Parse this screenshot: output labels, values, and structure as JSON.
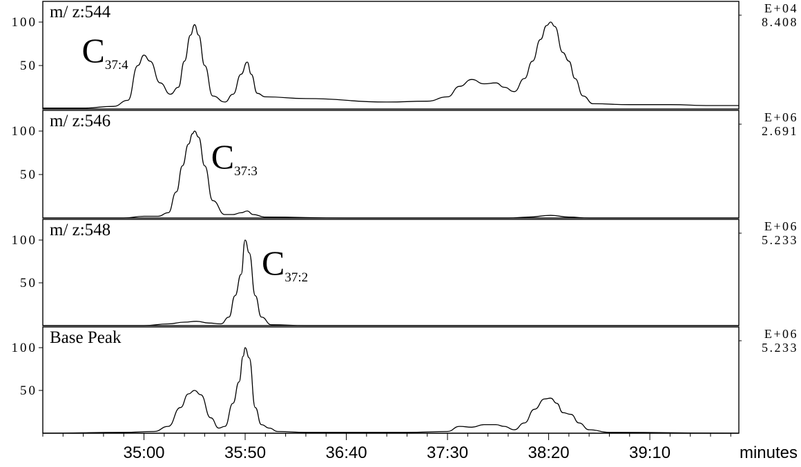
{
  "chart_data": {
    "type": "line",
    "x_unit": "minutes",
    "xlim": [
      "34:10",
      "39:54"
    ],
    "x_tick_labels": [
      "35:00",
      "35:50",
      "36:40",
      "37:30",
      "38:20",
      "39:10"
    ],
    "xlabel": "minutes",
    "y_tick_labels": [
      "100",
      "50"
    ],
    "ylim": [
      0,
      100
    ],
    "panels": [
      {
        "title": "m/ z:544",
        "scale_exponent": "E+04",
        "scale_value": "8.408",
        "annotation": {
          "main": "C",
          "sub": "37:4",
          "points_to_peak": "35:00"
        },
        "points": [
          [
            "34:10",
            1
          ],
          [
            "34:30",
            1
          ],
          [
            "34:45",
            3
          ],
          [
            "34:52",
            10
          ],
          [
            "34:57",
            50
          ],
          [
            "35:00",
            62
          ],
          [
            "35:03",
            55
          ],
          [
            "35:08",
            30
          ],
          [
            "35:13",
            17
          ],
          [
            "35:17",
            25
          ],
          [
            "35:20",
            55
          ],
          [
            "35:23",
            85
          ],
          [
            "35:25",
            97
          ],
          [
            "35:27",
            85
          ],
          [
            "35:30",
            50
          ],
          [
            "35:34",
            15
          ],
          [
            "35:40",
            8
          ],
          [
            "35:44",
            17
          ],
          [
            "35:48",
            40
          ],
          [
            "35:51",
            54
          ],
          [
            "35:53",
            40
          ],
          [
            "35:56",
            18
          ],
          [
            "36:00",
            14
          ],
          [
            "36:20",
            12
          ],
          [
            "37:00",
            8
          ],
          [
            "37:20",
            9
          ],
          [
            "37:30",
            14
          ],
          [
            "37:36",
            26
          ],
          [
            "37:42",
            34
          ],
          [
            "37:48",
            29
          ],
          [
            "37:54",
            30
          ],
          [
            "37:58",
            25
          ],
          [
            "38:03",
            20
          ],
          [
            "38:08",
            35
          ],
          [
            "38:12",
            55
          ],
          [
            "38:16",
            80
          ],
          [
            "38:19",
            96
          ],
          [
            "38:21",
            100
          ],
          [
            "38:23",
            95
          ],
          [
            "38:27",
            65
          ],
          [
            "38:30",
            55
          ],
          [
            "38:33",
            35
          ],
          [
            "38:37",
            15
          ],
          [
            "38:42",
            6
          ],
          [
            "39:00",
            5
          ],
          [
            "39:20",
            5
          ],
          [
            "39:40",
            4
          ],
          [
            "39:54",
            4
          ]
        ]
      },
      {
        "title": "m/ z:546",
        "scale_exponent": "E+06",
        "scale_value": "2.691",
        "annotation": {
          "main": "C",
          "sub": "37:3",
          "points_to_peak": "35:25"
        },
        "points": [
          [
            "34:10",
            0
          ],
          [
            "34:50",
            0
          ],
          [
            "35:00",
            2
          ],
          [
            "35:07",
            2
          ],
          [
            "35:12",
            6
          ],
          [
            "35:16",
            30
          ],
          [
            "35:19",
            60
          ],
          [
            "35:22",
            85
          ],
          [
            "35:24",
            97
          ],
          [
            "35:25",
            100
          ],
          [
            "35:27",
            93
          ],
          [
            "35:30",
            60
          ],
          [
            "35:34",
            20
          ],
          [
            "35:40",
            4
          ],
          [
            "35:44",
            4
          ],
          [
            "35:48",
            6
          ],
          [
            "35:51",
            8
          ],
          [
            "35:54",
            4
          ],
          [
            "36:00",
            1
          ],
          [
            "36:40",
            0
          ],
          [
            "37:00",
            0
          ],
          [
            "38:00",
            0
          ],
          [
            "38:10",
            1
          ],
          [
            "38:21",
            3
          ],
          [
            "38:30",
            1
          ],
          [
            "38:40",
            0
          ],
          [
            "39:54",
            0
          ]
        ]
      },
      {
        "title": "m/ z:548",
        "scale_exponent": "E+06",
        "scale_value": "5.233",
        "annotation": {
          "main": "C",
          "sub": "37:2",
          "points_to_peak": "35:50"
        },
        "points": [
          [
            "34:10",
            0
          ],
          [
            "35:00",
            0
          ],
          [
            "35:12",
            2
          ],
          [
            "35:20",
            4
          ],
          [
            "35:26",
            5
          ],
          [
            "35:32",
            3
          ],
          [
            "35:38",
            2
          ],
          [
            "35:42",
            10
          ],
          [
            "35:45",
            35
          ],
          [
            "35:48",
            60
          ],
          [
            "35:50",
            100
          ],
          [
            "35:52",
            85
          ],
          [
            "35:55",
            35
          ],
          [
            "35:58",
            10
          ],
          [
            "36:03",
            1
          ],
          [
            "36:20",
            0
          ],
          [
            "39:54",
            0
          ]
        ]
      },
      {
        "title": "Base Peak",
        "scale_exponent": "E+06",
        "scale_value": "5.233",
        "annotation": null,
        "points": [
          [
            "34:10",
            0
          ],
          [
            "34:50",
            1
          ],
          [
            "35:05",
            2
          ],
          [
            "35:12",
            8
          ],
          [
            "35:18",
            30
          ],
          [
            "35:22",
            46
          ],
          [
            "35:25",
            50
          ],
          [
            "35:28",
            45
          ],
          [
            "35:33",
            18
          ],
          [
            "35:37",
            6
          ],
          [
            "35:40",
            8
          ],
          [
            "35:44",
            35
          ],
          [
            "35:47",
            60
          ],
          [
            "35:49",
            90
          ],
          [
            "35:50",
            100
          ],
          [
            "35:52",
            88
          ],
          [
            "35:55",
            30
          ],
          [
            "35:58",
            10
          ],
          [
            "36:02",
            6
          ],
          [
            "36:06",
            2
          ],
          [
            "36:20",
            1
          ],
          [
            "37:10",
            1
          ],
          [
            "37:30",
            2
          ],
          [
            "37:36",
            8
          ],
          [
            "37:42",
            7
          ],
          [
            "37:48",
            10
          ],
          [
            "37:54",
            10
          ],
          [
            "37:58",
            8
          ],
          [
            "38:03",
            4
          ],
          [
            "38:08",
            12
          ],
          [
            "38:13",
            28
          ],
          [
            "38:18",
            40
          ],
          [
            "38:21",
            41
          ],
          [
            "38:24",
            35
          ],
          [
            "38:27",
            24
          ],
          [
            "38:31",
            22
          ],
          [
            "38:35",
            12
          ],
          [
            "38:40",
            4
          ],
          [
            "38:50",
            1
          ],
          [
            "39:54",
            0
          ]
        ]
      }
    ]
  }
}
